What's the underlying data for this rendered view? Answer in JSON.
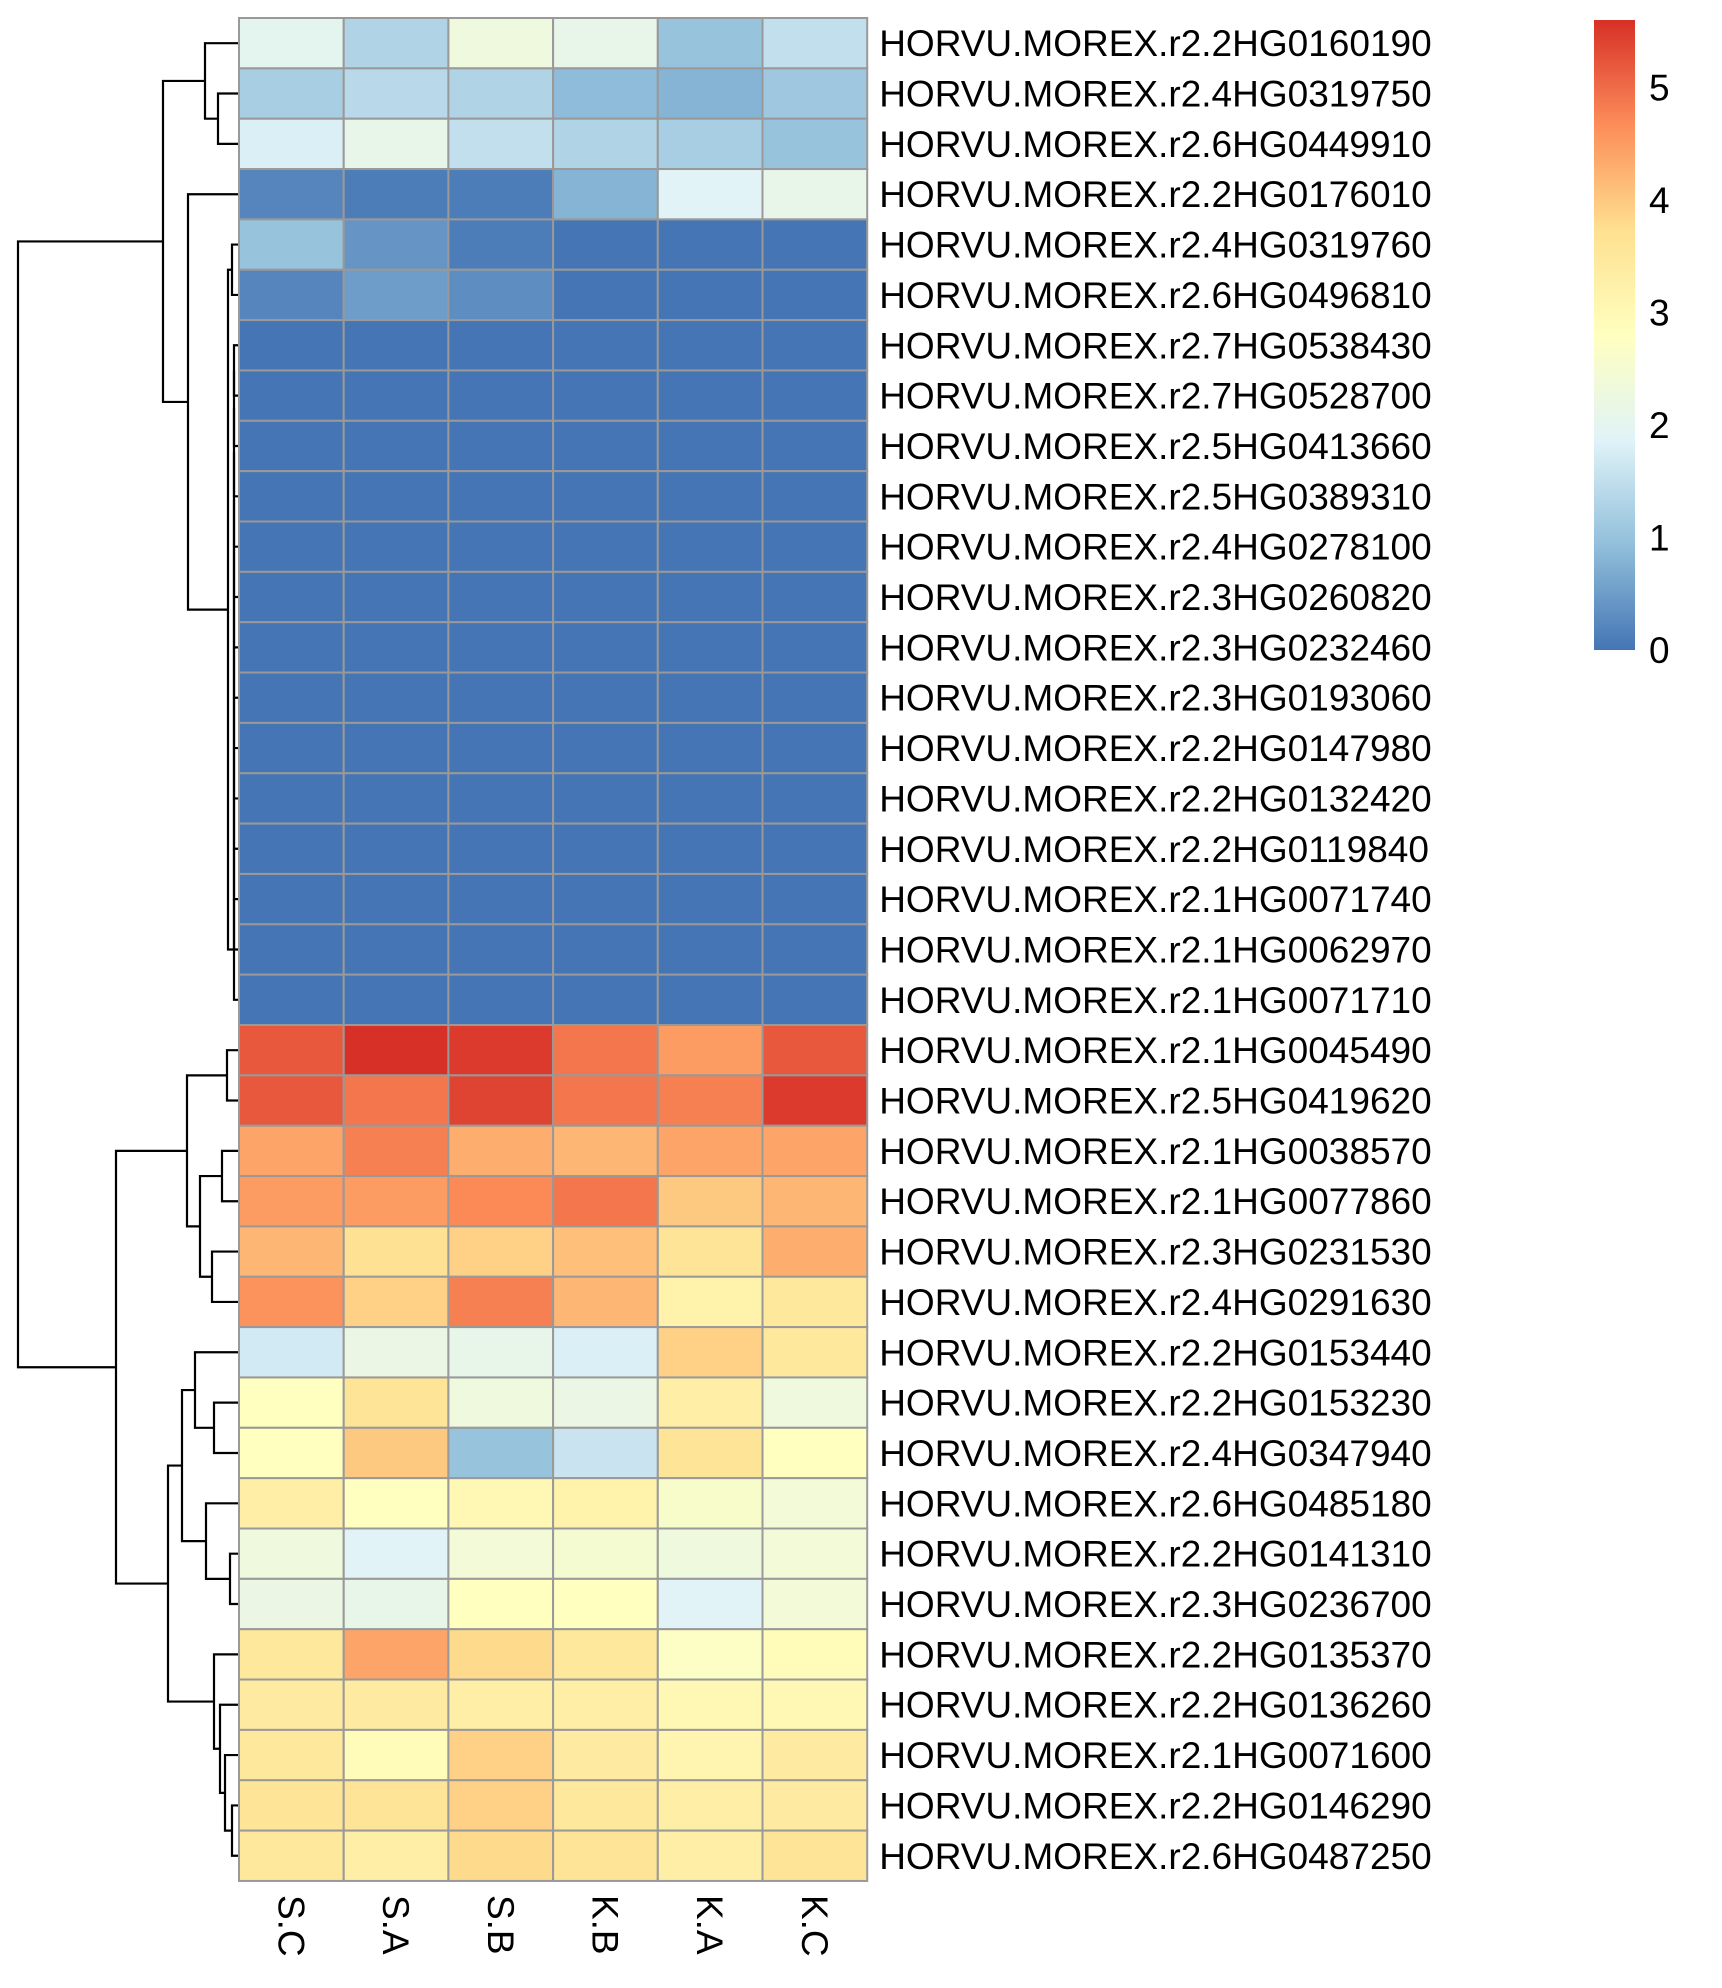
{
  "chart_data": {
    "type": "heatmap",
    "title": "",
    "xlabel": "",
    "ylabel": "",
    "columns": [
      "S.C",
      "S.A",
      "S.B",
      "K.B",
      "K.A",
      "K.C"
    ],
    "rows": [
      "HORVU.MOREX.r2.2HG0160190",
      "HORVU.MOREX.r2.4HG0319750",
      "HORVU.MOREX.r2.6HG0449910",
      "HORVU.MOREX.r2.2HG0176010",
      "HORVU.MOREX.r2.4HG0319760",
      "HORVU.MOREX.r2.6HG0496810",
      "HORVU.MOREX.r2.7HG0538430",
      "HORVU.MOREX.r2.7HG0528700",
      "HORVU.MOREX.r2.5HG0413660",
      "HORVU.MOREX.r2.5HG0389310",
      "HORVU.MOREX.r2.4HG0278100",
      "HORVU.MOREX.r2.3HG0260820",
      "HORVU.MOREX.r2.3HG0232460",
      "HORVU.MOREX.r2.3HG0193060",
      "HORVU.MOREX.r2.2HG0147980",
      "HORVU.MOREX.r2.2HG0132420",
      "HORVU.MOREX.r2.2HG0119840",
      "HORVU.MOREX.r2.1HG0071740",
      "HORVU.MOREX.r2.1HG0062970",
      "HORVU.MOREX.r2.1HG0071710",
      "HORVU.MOREX.r2.1HG0045490",
      "HORVU.MOREX.r2.5HG0419620",
      "HORVU.MOREX.r2.1HG0038570",
      "HORVU.MOREX.r2.1HG0077860",
      "HORVU.MOREX.r2.3HG0231530",
      "HORVU.MOREX.r2.4HG0291630",
      "HORVU.MOREX.r2.2HG0153440",
      "HORVU.MOREX.r2.2HG0153230",
      "HORVU.MOREX.r2.4HG0347940",
      "HORVU.MOREX.r2.6HG0485180",
      "HORVU.MOREX.r2.2HG0141310",
      "HORVU.MOREX.r2.3HG0236700",
      "HORVU.MOREX.r2.2HG0135370",
      "HORVU.MOREX.r2.2HG0136260",
      "HORVU.MOREX.r2.1HG0071600",
      "HORVU.MOREX.r2.2HG0146290",
      "HORVU.MOREX.r2.6HG0487250"
    ],
    "values": [
      [
        2.0,
        1.3,
        2.3,
        2.1,
        1.0,
        1.5
      ],
      [
        1.2,
        1.4,
        1.3,
        0.9,
        0.8,
        1.1
      ],
      [
        1.8,
        2.1,
        1.5,
        1.3,
        1.2,
        1.0
      ],
      [
        0.2,
        0.1,
        0.1,
        0.8,
        1.9,
        2.1
      ],
      [
        1.0,
        0.4,
        0.1,
        0.0,
        0.0,
        0.0
      ],
      [
        0.2,
        0.5,
        0.3,
        0.0,
        0.0,
        0.0
      ],
      [
        0.0,
        0.0,
        0.0,
        0.0,
        0.0,
        0.0
      ],
      [
        0.0,
        0.0,
        0.0,
        0.0,
        0.0,
        0.0
      ],
      [
        0.0,
        0.0,
        0.0,
        0.0,
        0.0,
        0.0
      ],
      [
        0.0,
        0.0,
        0.0,
        0.0,
        0.0,
        0.0
      ],
      [
        0.0,
        0.0,
        0.0,
        0.0,
        0.0,
        0.0
      ],
      [
        0.0,
        0.0,
        0.0,
        0.0,
        0.0,
        0.0
      ],
      [
        0.0,
        0.0,
        0.0,
        0.0,
        0.0,
        0.0
      ],
      [
        0.0,
        0.0,
        0.0,
        0.0,
        0.0,
        0.0
      ],
      [
        0.0,
        0.0,
        0.0,
        0.0,
        0.0,
        0.0
      ],
      [
        0.0,
        0.0,
        0.0,
        0.0,
        0.0,
        0.0
      ],
      [
        0.0,
        0.0,
        0.0,
        0.0,
        0.0,
        0.0
      ],
      [
        0.0,
        0.0,
        0.0,
        0.0,
        0.0,
        0.0
      ],
      [
        0.0,
        0.0,
        0.0,
        0.0,
        0.0,
        0.0
      ],
      [
        0.0,
        0.0,
        0.0,
        0.0,
        0.0,
        0.0
      ],
      [
        5.2,
        5.6,
        5.5,
        4.9,
        4.5,
        5.2
      ],
      [
        5.2,
        4.9,
        5.4,
        4.9,
        4.8,
        5.5
      ],
      [
        4.4,
        4.8,
        4.3,
        4.2,
        4.4,
        4.4
      ],
      [
        4.5,
        4.5,
        4.7,
        4.9,
        4.0,
        4.2
      ],
      [
        4.2,
        3.7,
        3.9,
        4.1,
        3.6,
        4.3
      ],
      [
        4.6,
        3.9,
        4.8,
        4.2,
        3.2,
        3.5
      ],
      [
        1.7,
        2.2,
        2.1,
        1.8,
        3.9,
        3.5
      ],
      [
        2.8,
        3.6,
        2.3,
        2.2,
        3.3,
        2.3
      ],
      [
        2.8,
        4.0,
        1.0,
        1.6,
        3.6,
        2.8
      ],
      [
        3.3,
        2.8,
        3.0,
        3.2,
        2.6,
        2.4
      ],
      [
        2.3,
        1.9,
        2.4,
        2.5,
        2.3,
        2.4
      ],
      [
        2.2,
        2.1,
        2.8,
        2.8,
        1.9,
        2.4
      ],
      [
        3.5,
        4.4,
        3.8,
        3.5,
        2.7,
        2.9
      ],
      [
        3.4,
        3.4,
        3.3,
        3.3,
        3.0,
        3.0
      ],
      [
        3.5,
        2.9,
        3.9,
        3.4,
        3.1,
        3.4
      ],
      [
        3.6,
        3.6,
        3.9,
        3.5,
        3.3,
        3.4
      ],
      [
        3.5,
        3.3,
        3.8,
        3.6,
        3.3,
        3.6
      ]
    ],
    "colorbar": {
      "ticks": [
        "0",
        "1",
        "2",
        "3",
        "4",
        "5"
      ],
      "min": 0,
      "max": 5.6,
      "colors": [
        "#4575b4",
        "#91bfdb",
        "#e0f3f8",
        "#ffffbf",
        "#fee090",
        "#fc8d59",
        "#d73027"
      ]
    },
    "grid_color": "#999999"
  }
}
